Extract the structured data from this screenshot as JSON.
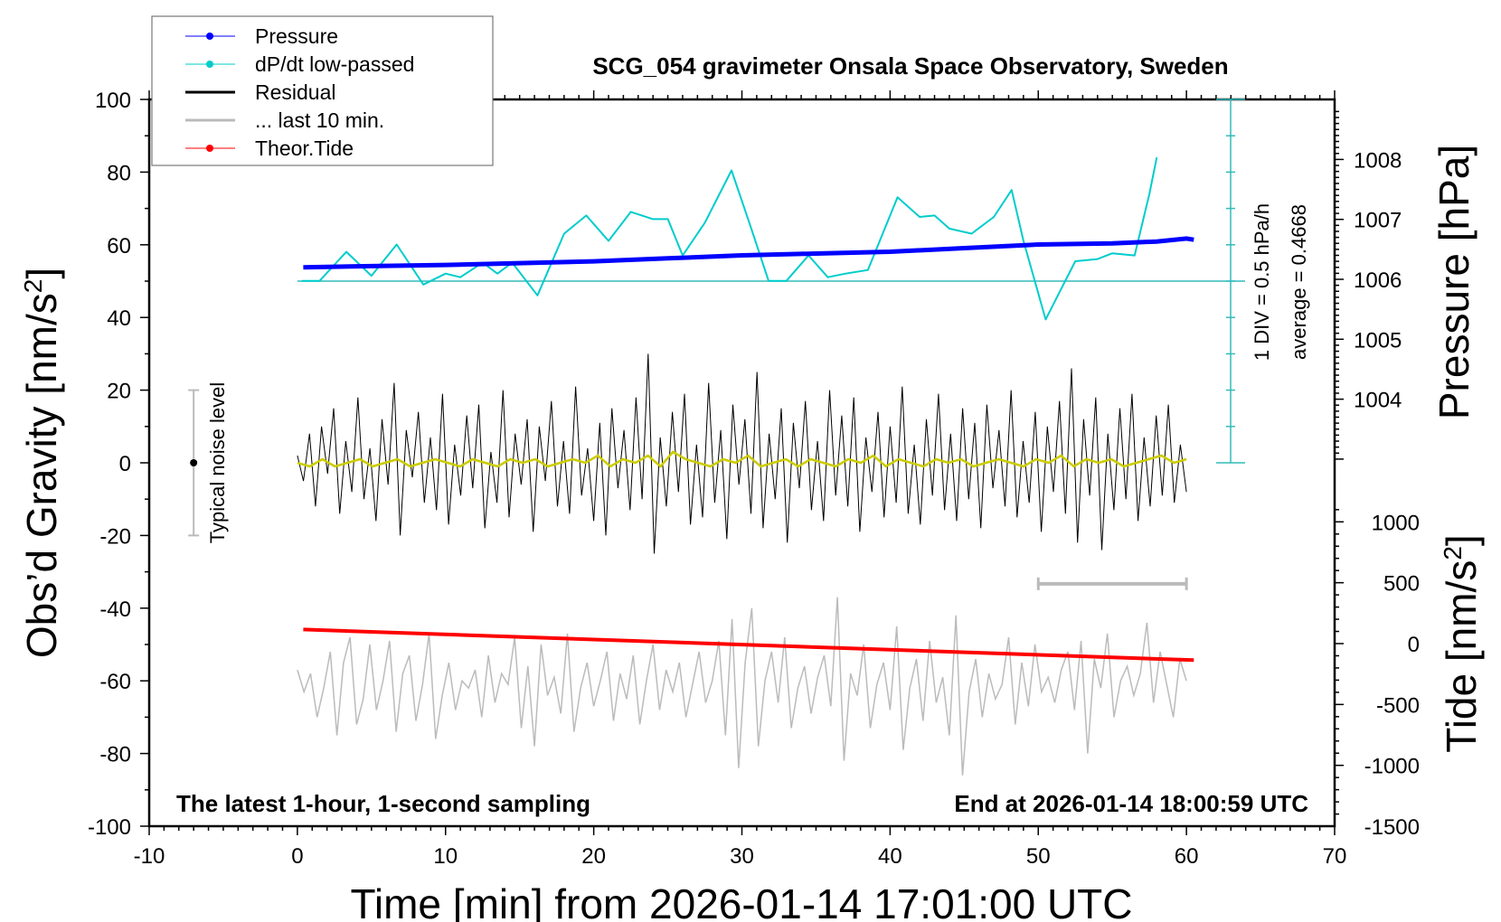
{
  "chart_data": {
    "type": "line",
    "title": "SCG_054 gravimeter Onsala Space Observatory, Sweden",
    "xlabel": "Time [min] from 2026-01-14 17:01:00 UTC",
    "ylabel": "Obs’d Gravity [nm/s2]",
    "ylabel_main": "Obs’d Gravity [nm/s",
    "ylabel_sup": "2",
    "ylabel_end": "]",
    "y2label": "Pressure [hPa]",
    "y3label_main": "Tide [nm/s",
    "y3label_sup": "2",
    "y3label_end": "]",
    "xlim": [
      -10,
      70
    ],
    "ylim": [
      -100,
      100
    ],
    "pressure_lim": [
      1006,
      1008
    ],
    "tide_lim": [
      -1500,
      1000
    ],
    "xticks": [
      "-10",
      "0",
      "10",
      "20",
      "30",
      "40",
      "50",
      "60",
      "70"
    ],
    "yticks": [
      "100",
      "80",
      "60",
      "40",
      "20",
      "0",
      "-20",
      "-40",
      "-60",
      "-80",
      "-100"
    ],
    "pressure_ticks": [
      "1008",
      "1007",
      "1006",
      "1005",
      "1004"
    ],
    "tide_ticks": [
      "1000",
      "500",
      "0",
      "-500",
      "-1000",
      "-1500"
    ],
    "grid": false,
    "legend_position": "top-left",
    "legend": [
      {
        "label": "Pressure",
        "color": "#0000ff",
        "marker": true
      },
      {
        "label": "dP/dt low-passed",
        "color": "#00cccc",
        "marker": true
      },
      {
        "label": "Residual",
        "color": "#000000",
        "marker": false
      },
      {
        "label": "... last 10 min.",
        "color": "#bbbbbb",
        "marker": false
      },
      {
        "label": "Theor.Tide",
        "color": "#ff0000",
        "marker": true
      }
    ],
    "annotations": {
      "div": "1 DIV = 0.5 hPa/h",
      "average": "average = 0.4668",
      "noise": "Typical noise level",
      "bottom_left": "The latest 1-hour, 1-second sampling",
      "bottom_right": "End at 2026-01-14 18:00:59 UTC"
    },
    "dpdt_average": 0.4668,
    "dpdt_div": 0.5,
    "noise_level": [
      -20,
      20
    ],
    "last10_scale_bar_min": [
      50,
      60
    ],
    "series": {
      "pressure": {
        "x": [
          0.4,
          5,
          10,
          15,
          20,
          25,
          30,
          35,
          40,
          45,
          50,
          55,
          58,
          60,
          60.5
        ],
        "y": [
          1006.2,
          1006.22,
          1006.24,
          1006.27,
          1006.3,
          1006.35,
          1006.4,
          1006.43,
          1006.46,
          1006.52,
          1006.58,
          1006.6,
          1006.63,
          1006.68,
          1006.66
        ]
      },
      "dpdt": {
        "x": [
          0.3,
          1.5,
          3.3,
          5,
          6.7,
          8.5,
          10,
          11,
          12.5,
          13.5,
          14.5,
          16.2,
          18,
          19.5,
          21,
          22.5,
          24,
          25,
          26,
          27.5,
          29.3,
          30.5,
          31.8,
          33,
          34.5,
          35.8,
          37,
          38.5,
          40.5,
          42,
          43,
          44,
          45.5,
          47,
          48.2,
          49,
          50.5,
          51.5,
          52.5,
          54,
          55,
          56.5,
          57.5,
          58
        ],
        "y": [
          0.47,
          0.47,
          0.87,
          0.54,
          0.97,
          0.42,
          0.57,
          0.52,
          0.72,
          0.57,
          0.72,
          0.27,
          1.12,
          1.37,
          1.02,
          1.42,
          1.32,
          1.32,
          0.82,
          1.27,
          1.99,
          1.27,
          0.47,
          0.47,
          0.82,
          0.52,
          0.57,
          0.62,
          1.62,
          1.35,
          1.37,
          1.19,
          1.12,
          1.35,
          1.72,
          1.02,
          -0.06,
          0.34,
          0.74,
          0.77,
          0.85,
          0.82,
          1.67,
          2.17
        ]
      },
      "residual": [
        2,
        -5,
        8,
        -12,
        10,
        -3,
        15,
        -14,
        6,
        -8,
        18,
        -10,
        4,
        -16,
        12,
        -6,
        22,
        -20,
        9,
        -4,
        14,
        -11,
        7,
        -13,
        19,
        -17,
        5,
        -9,
        13,
        -7,
        16,
        -18,
        3,
        -11,
        20,
        -15,
        8,
        -6,
        12,
        -19,
        10,
        -5,
        17,
        -12,
        6,
        -14,
        21,
        -9,
        4,
        -16,
        11,
        -20,
        15,
        -7,
        9,
        -13,
        18,
        -10,
        30,
        -25,
        7,
        -12,
        14,
        -8,
        19,
        -17,
        5,
        -15,
        22,
        -11,
        9,
        -21,
        16,
        -6,
        12,
        -14,
        25,
        -18,
        8,
        -10,
        15,
        -22,
        11,
        -7,
        17,
        -13,
        6,
        -16,
        20,
        -9,
        13,
        -12,
        18,
        -19,
        7,
        -8,
        14,
        -15,
        10,
        -11,
        21,
        -14,
        5,
        -17,
        12,
        -9,
        19,
        -13,
        8,
        -16,
        15,
        -10,
        11,
        -18,
        16,
        -7,
        9,
        -12,
        20,
        -15,
        6,
        -11,
        14,
        -19,
        10,
        -8,
        17,
        -14,
        26,
        -22,
        12,
        -9,
        18,
        -24,
        8,
        -13,
        15,
        -10,
        19,
        -16,
        7,
        -12,
        13,
        -9,
        16,
        -11,
        5,
        -8
      ],
      "residual_smoothed": [
        0,
        -1,
        1,
        -1,
        0,
        1,
        -1,
        0,
        1,
        -1,
        0,
        1,
        0,
        -1,
        1,
        0,
        -1,
        1,
        0,
        1,
        -1,
        0,
        1,
        0,
        2,
        -1,
        1,
        0,
        2,
        -1,
        3,
        1,
        0,
        -1,
        1,
        0,
        2,
        -1,
        0,
        1,
        -1,
        1,
        0,
        -1,
        1,
        0,
        2,
        -1,
        1,
        0,
        -1,
        1,
        0,
        1,
        -1,
        0,
        1,
        0,
        -1,
        1,
        0,
        2,
        -1,
        1,
        0,
        1,
        -1,
        0,
        1,
        2,
        0,
        1
      ],
      "last_10_min": [
        -57,
        -63,
        -58,
        -70,
        -62,
        -52,
        -75,
        -55,
        -48,
        -72,
        -65,
        -50,
        -68,
        -60,
        -49,
        -74,
        -58,
        -53,
        -71,
        -61,
        -47,
        -76,
        -64,
        -55,
        -68,
        -60,
        -62,
        -57,
        -70,
        -53,
        -66,
        -58,
        -61,
        -48,
        -73,
        -56,
        -78,
        -50,
        -64,
        -59,
        -69,
        -47,
        -74,
        -62,
        -55,
        -67,
        -60,
        -52,
        -71,
        -58,
        -65,
        -53,
        -72,
        -60,
        -50,
        -68,
        -57,
        -63,
        -55,
        -70,
        -61,
        -52,
        -66,
        -60,
        -49,
        -75,
        -43,
        -84,
        -55,
        -40,
        -78,
        -60,
        -52,
        -66,
        -48,
        -73,
        -62,
        -56,
        -69,
        -59,
        -53,
        -67,
        -37,
        -82,
        -58,
        -64,
        -50,
        -73,
        -61,
        -55,
        -68,
        -45,
        -79,
        -62,
        -54,
        -71,
        -49,
        -66,
        -59,
        -75,
        -42,
        -86,
        -63,
        -54,
        -70,
        -58,
        -65,
        -61,
        -48,
        -72,
        -55,
        -67,
        -50,
        -63,
        -59,
        -66,
        -57,
        -52,
        -68,
        -49,
        -80,
        -54,
        -62,
        -47,
        -70,
        -60,
        -56,
        -64,
        -58,
        -44,
        -66,
        -52,
        -61,
        -70,
        -54,
        -60
      ],
      "tide": {
        "x": [
          0.4,
          60.5
        ],
        "y": [
          116,
          -136
        ]
      }
    }
  }
}
